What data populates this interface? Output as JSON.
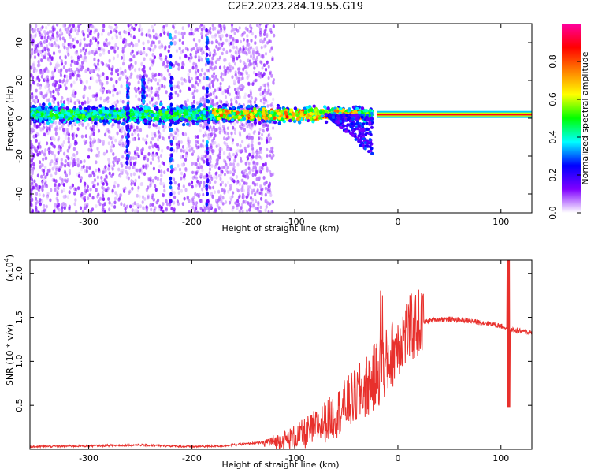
{
  "title": "C2E2.2023.284.19.55.G19",
  "colors": {
    "snr_line": "#e8302c",
    "spectrogram_points": "#6a00e8",
    "background": "#ffffff",
    "frame": "#000000"
  },
  "chart_data": [
    {
      "type": "heatmap",
      "xlabel": "Height of straight line (km)",
      "ylabel": "Frequency (Hz)",
      "xlim": [
        -357,
        130
      ],
      "ylim": [
        -50,
        50
      ],
      "x_ticks": [
        -300,
        -200,
        -100,
        0,
        100
      ],
      "y_ticks": [
        -40,
        -20,
        0,
        20,
        40
      ],
      "colorbar": {
        "label": "Normalized spectral amplitude",
        "range": [
          0,
          1
        ],
        "ticks": [
          0.0,
          0.2,
          0.4,
          0.6,
          0.8
        ],
        "colormap": [
          "#ffffff",
          "#8000ff",
          "#0000ff",
          "#00ffff",
          "#00ff00",
          "#ffff00",
          "#ff8000",
          "#ff0000",
          "#ff00a0"
        ]
      },
      "features": {
        "noise_scatter_extent_km": [
          -357,
          -120
        ],
        "main_band_frequency_hz": 2,
        "narrow_line_extent_km": [
          -20,
          130
        ],
        "narrow_line_amplitude": 0.9
      }
    },
    {
      "type": "line",
      "xlabel": "Height of straight line (km)",
      "ylabel": "SNR (10 * v/v)",
      "y_multiplier": "(x10",
      "y_multiplier_exp": "4",
      "y_multiplier_close": ")",
      "xlim": [
        -357,
        130
      ],
      "ylim": [
        0,
        2.15
      ],
      "x_ticks": [
        -300,
        -200,
        -100,
        0,
        100
      ],
      "y_ticks": [
        0.5,
        1.0,
        1.5,
        2.0
      ],
      "series": [
        {
          "x": [
            -357,
            -300,
            -250,
            -200,
            -170,
            -150,
            -130,
            -110,
            -100,
            -90,
            -80,
            -70,
            -60,
            -50,
            -40,
            -30,
            -20,
            -15,
            -10,
            -5,
            0,
            10,
            20,
            30,
            40,
            50,
            60,
            70,
            80,
            90,
            100,
            105,
            108,
            110,
            115,
            120,
            130
          ],
          "y": [
            0.03,
            0.04,
            0.05,
            0.03,
            0.04,
            0.06,
            0.08,
            0.1,
            0.14,
            0.18,
            0.25,
            0.32,
            0.4,
            0.52,
            0.6,
            0.72,
            0.85,
            0.95,
            1.0,
            1.1,
            1.22,
            1.35,
            1.43,
            1.46,
            1.48,
            1.48,
            1.47,
            1.46,
            1.44,
            1.43,
            1.4,
            1.38,
            1.3,
            1.36,
            1.35,
            1.34,
            1.33
          ]
        }
      ]
    }
  ]
}
